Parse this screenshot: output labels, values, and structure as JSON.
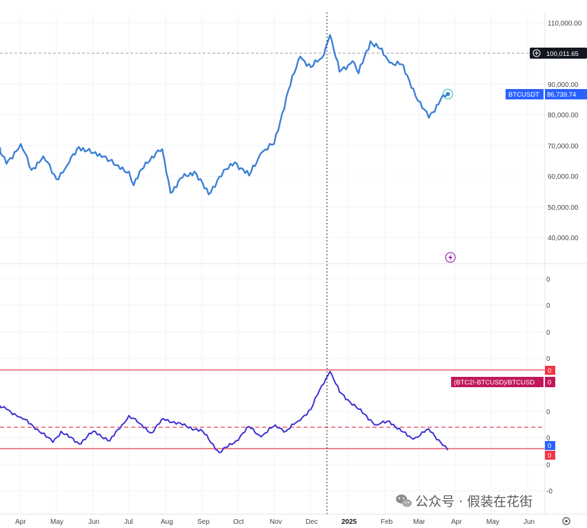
{
  "price_axis": {
    "ticks": [
      "110,000.00",
      "90,000.00",
      "80,000.00",
      "70,000.00",
      "60,000.00",
      "50,000.00",
      "40,000.00"
    ],
    "crosshair_value": "100,011.65",
    "symbol_tag": "BTCUSDT",
    "last_price_tag": "86,739.74"
  },
  "indicator_axis": {
    "ticks": [
      "0",
      "0",
      "0",
      "0",
      "0",
      "0",
      "0",
      "-0"
    ],
    "label": "(BTC2!-BTCUSD)/BTCUSD",
    "value_tags": [
      "0",
      "0",
      "0",
      "0"
    ]
  },
  "time_axis": {
    "labels": [
      "Apr",
      "May",
      "Jun",
      "Jul",
      "Aug",
      "Sep",
      "Oct",
      "Nov",
      "Dec",
      "2025",
      "Feb",
      "Mar",
      "Apr",
      "May",
      "Jun"
    ]
  },
  "watermark": "公众号 · 假装在花街",
  "colors": {
    "price_line": "#3a7fd5",
    "indicator_line": "#3a2fd1",
    "band": "#e8384f",
    "tag_blue": "#2962ff",
    "tag_red": "#f23645",
    "tag_magenta": "#c2185b",
    "crosshair_tag": "#131722"
  },
  "chart_data": [
    {
      "type": "line",
      "title": "",
      "series": [
        {
          "name": "BTCUSDT",
          "x": [
            "2024-03-10",
            "2024-03-20",
            "2024-04-01",
            "2024-04-10",
            "2024-04-20",
            "2024-05-01",
            "2024-05-10",
            "2024-05-20",
            "2024-06-01",
            "2024-06-10",
            "2024-06-20",
            "2024-07-01",
            "2024-07-05",
            "2024-07-15",
            "2024-07-29",
            "2024-08-05",
            "2024-08-15",
            "2024-08-25",
            "2024-09-06",
            "2024-09-15",
            "2024-09-28",
            "2024-10-10",
            "2024-10-20",
            "2024-10-31",
            "2024-11-12",
            "2024-11-22",
            "2024-12-01",
            "2024-12-10",
            "2024-12-17",
            "2024-12-25",
            "2025-01-05",
            "2025-01-10",
            "2025-01-20",
            "2025-01-28",
            "2025-02-05",
            "2025-02-15",
            "2025-02-25",
            "2025-03-01",
            "2025-03-10",
            "2025-03-20",
            "2025-03-26"
          ],
          "values": [
            71000,
            64000,
            70500,
            62000,
            66500,
            59000,
            63500,
            69500,
            67500,
            66500,
            63500,
            61500,
            57000,
            64500,
            68800,
            54500,
            59500,
            61500,
            54000,
            59800,
            64500,
            60200,
            67500,
            70500,
            88000,
            99000,
            95500,
            98500,
            106000,
            94000,
            97500,
            93500,
            104000,
            101500,
            97000,
            96500,
            88500,
            84500,
            79000,
            85000,
            86740
          ]
        }
      ],
      "ylim": [
        33000,
        112000
      ]
    },
    {
      "type": "line",
      "title": "",
      "series": [
        {
          "name": "(BTC2!-BTCUSD)/BTCUSD",
          "x": [
            "2024-03-10",
            "2024-03-20",
            "2024-04-01",
            "2024-04-15",
            "2024-04-28",
            "2024-05-05",
            "2024-05-20",
            "2024-06-01",
            "2024-06-15",
            "2024-06-25",
            "2024-07-01",
            "2024-07-10",
            "2024-07-20",
            "2024-07-30",
            "2024-08-15",
            "2024-09-01",
            "2024-09-15",
            "2024-09-29",
            "2024-10-10",
            "2024-10-20",
            "2024-11-01",
            "2024-11-10",
            "2024-11-20",
            "2024-12-01",
            "2024-12-10",
            "2024-12-17",
            "2024-12-25",
            "2025-01-10",
            "2025-01-25",
            "2025-02-05",
            "2025-02-15",
            "2025-02-25",
            "2025-03-10",
            "2025-03-20",
            "2025-03-26"
          ],
          "values": [
            0.55,
            0.5,
            0.4,
            0.25,
            0.08,
            0.22,
            0.06,
            0.22,
            0.1,
            0.3,
            0.42,
            0.32,
            0.2,
            0.38,
            0.3,
            0.22,
            -0.05,
            0.1,
            0.28,
            0.15,
            0.3,
            0.22,
            0.35,
            0.5,
            0.8,
            0.98,
            0.72,
            0.5,
            0.3,
            0.35,
            0.22,
            0.12,
            0.25,
            0.08,
            -0.02
          ]
        }
      ],
      "ylim": [
        -0.45,
        1.45
      ]
    }
  ]
}
